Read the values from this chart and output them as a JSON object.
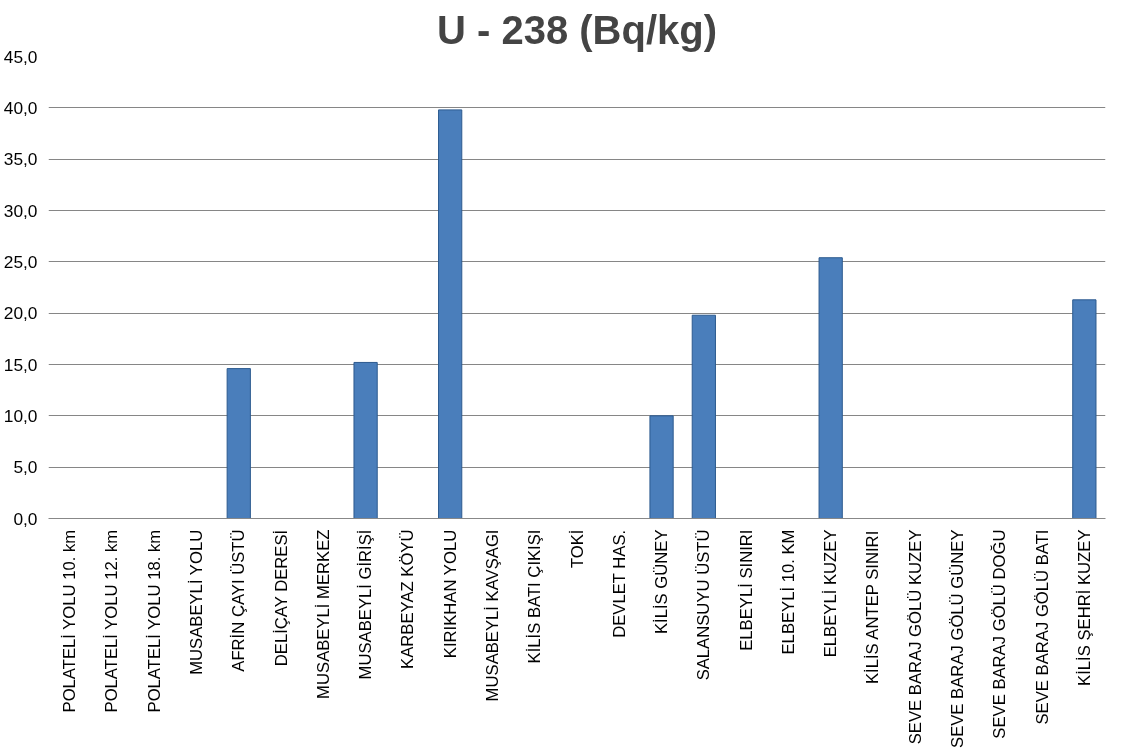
{
  "chart_data": {
    "type": "bar",
    "title": "U - 238 (Bq/kg)",
    "categories": [
      "POLATELİ YOLU 10. km",
      "POLATELİ YOLU 12. km",
      "POLATELİ YOLU 18. km",
      "MUSABEYLİ YOLU",
      "AFRİN ÇAYI ÜSTÜ",
      "DELİÇAY DERESİ",
      "MUSABEYLİ MERKEZ",
      "MUSABEYLİ GİRİŞİ",
      "KARBEYAZ KÖYÜ",
      "KIRIKHAN YOLU",
      "MUSABEYLİ KAVŞAGI",
      "KİLİS BATI ÇIKIŞI",
      "TOKİ",
      "DEVLET HAS.",
      "KİLİS GÜNEY",
      "SALANSUYU ÜSTÜ",
      "ELBEYLİ SINIRI",
      "ELBEYLİ 10. KM",
      "ELBEYLİ KUZEY",
      "KİLİS ANTEP SINIRI",
      "SEVE BARAJ GÖLÜ KUZEY",
      "SEVE BARAJ GÖLÜ GÜNEY",
      "SEVE BARAJ GÖLÜ DOĞU",
      "SEVE BARAJ GÖLÜ BATI",
      "KİLİS ŞEHRİ KUZEY"
    ],
    "values": [
      null,
      null,
      null,
      null,
      14.6,
      null,
      null,
      15.2,
      null,
      39.8,
      null,
      null,
      null,
      null,
      10.0,
      19.8,
      null,
      null,
      25.4,
      null,
      null,
      null,
      null,
      null,
      21.3
    ],
    "color": "#4a7ebb",
    "ylim": [
      0,
      45
    ],
    "yticks": [
      {
        "value": 0,
        "label": "0,0"
      },
      {
        "value": 5,
        "label": "5,0"
      },
      {
        "value": 10,
        "label": "10,0"
      },
      {
        "value": 15,
        "label": "15,0"
      },
      {
        "value": 20,
        "label": "20,0"
      },
      {
        "value": 25,
        "label": "25,0"
      },
      {
        "value": 30,
        "label": "30,0"
      },
      {
        "value": 35,
        "label": "35,0"
      },
      {
        "value": 40,
        "label": "40,0"
      },
      {
        "value": 45,
        "label": "45,0"
      }
    ],
    "grid": "y"
  }
}
